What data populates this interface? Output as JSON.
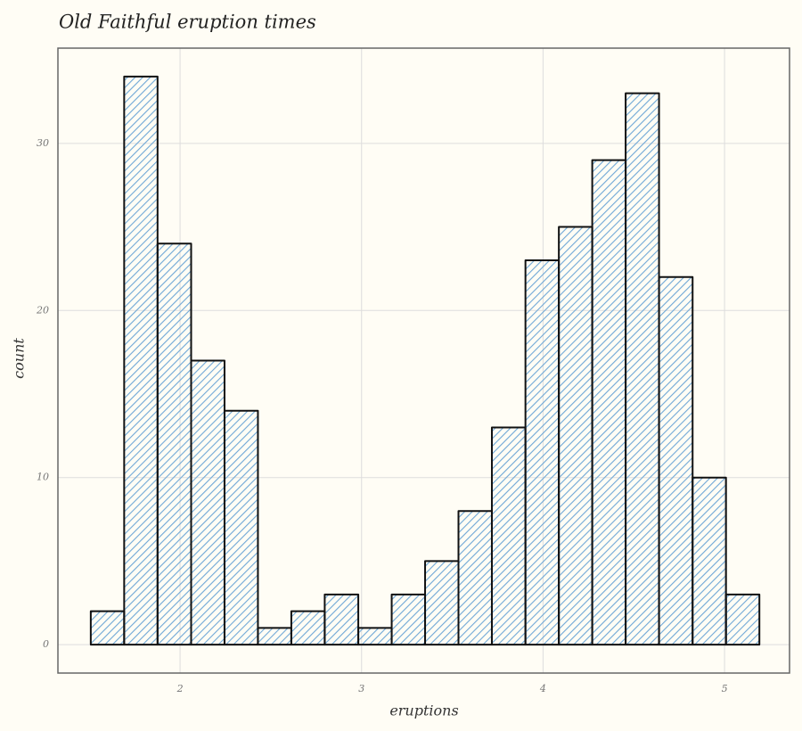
{
  "chart_data": {
    "type": "histogram",
    "title": "Old Faithful eruption times",
    "x_label": "eruptions",
    "y_label": "count",
    "bins": [
      1.508,
      1.692,
      1.876,
      2.061,
      2.245,
      2.429,
      2.613,
      2.797,
      2.982,
      3.166,
      3.35,
      3.534,
      3.718,
      3.903,
      4.087,
      4.271,
      4.455,
      4.639,
      4.824,
      5.008,
      5.192
    ],
    "values": [
      2,
      34,
      24,
      17,
      14,
      1,
      2,
      3,
      1,
      3,
      5,
      8,
      13,
      23,
      25,
      29,
      33,
      22,
      10,
      3
    ],
    "color": "#6fa8d6",
    "xlim": [
      1.327,
      5.358
    ],
    "xticks": [
      2,
      3,
      4,
      5
    ],
    "ylim": [
      -1.7,
      35.7
    ],
    "yticks": [
      0,
      10,
      20,
      30
    ],
    "grid": true
  }
}
